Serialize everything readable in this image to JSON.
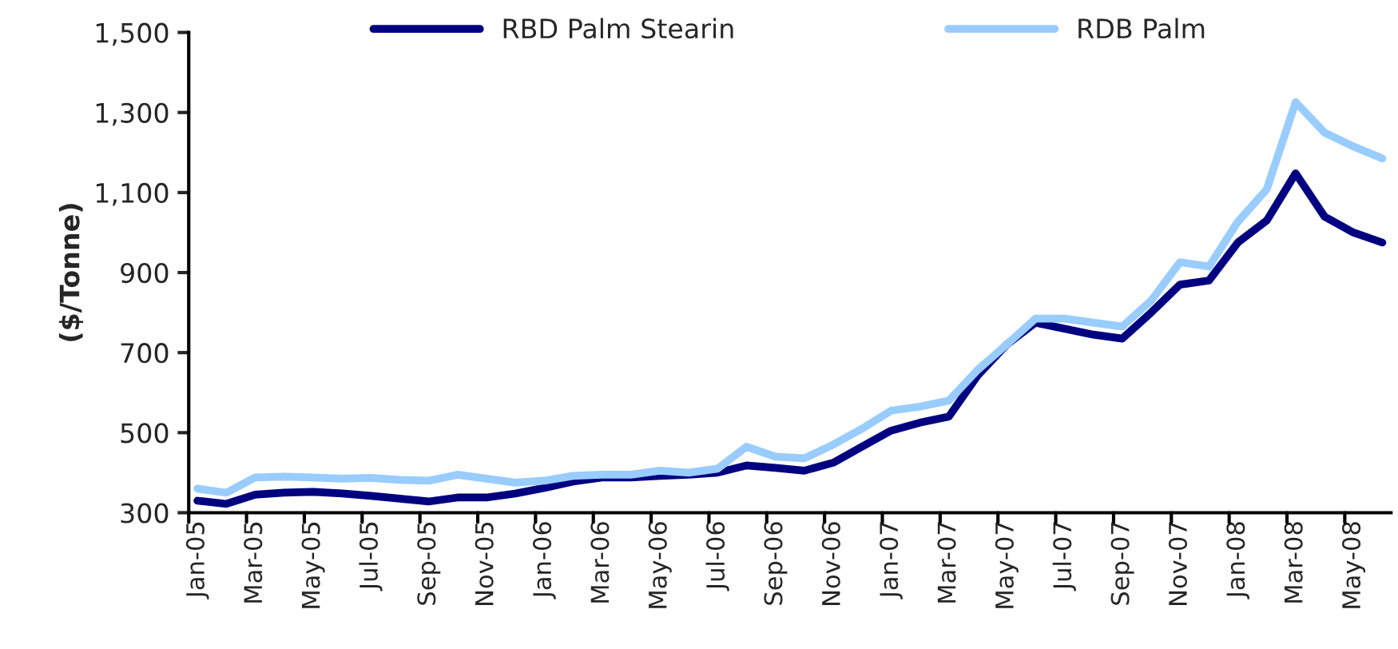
{
  "chart_data": {
    "type": "line",
    "ylabel": "($/Tonne)",
    "categories": [
      "Jan-05",
      null,
      "Mar-05",
      null,
      "May-05",
      null,
      "Jul-05",
      null,
      "Sep-05",
      null,
      "Nov-05",
      null,
      "Jan-06",
      null,
      "Mar-06",
      null,
      "May-06",
      null,
      "Jul-06",
      null,
      "Sep-06",
      null,
      "Nov-06",
      null,
      "Jan-07",
      null,
      "Mar-07",
      null,
      "May-07",
      null,
      "Jul-07",
      null,
      "Sep-07",
      null,
      "Nov-07",
      null,
      "Jan-08",
      null,
      "Mar-08",
      null,
      "May-08",
      null
    ],
    "series": [
      {
        "name": "RBD Palm Stearin",
        "color": "#000080",
        "values": [
          330,
          322,
          345,
          350,
          352,
          348,
          342,
          335,
          328,
          338,
          338,
          348,
          362,
          378,
          388,
          388,
          392,
          395,
          400,
          418,
          412,
          405,
          425,
          465,
          505,
          525,
          540,
          643,
          720,
          775,
          760,
          745,
          735,
          800,
          870,
          880,
          975,
          1030,
          1148,
          1040,
          1000,
          975
        ]
      },
      {
        "name": "RDB Palm",
        "color": "#99ccff",
        "values": [
          360,
          350,
          388,
          390,
          388,
          385,
          387,
          382,
          380,
          395,
          385,
          375,
          380,
          392,
          395,
          395,
          405,
          400,
          410,
          465,
          440,
          436,
          470,
          510,
          555,
          565,
          580,
          657,
          720,
          785,
          785,
          775,
          765,
          830,
          926,
          915,
          1027,
          1108,
          1326,
          1250,
          1215,
          1185
        ]
      }
    ],
    "ylim": [
      300,
      1500
    ],
    "yticks": [
      {
        "value": 300,
        "label": "300"
      },
      {
        "value": 500,
        "label": "500"
      },
      {
        "value": 700,
        "label": "700"
      },
      {
        "value": 900,
        "label": "900"
      },
      {
        "value": 1100,
        "label": "1,100"
      },
      {
        "value": 1300,
        "label": "1,300"
      },
      {
        "value": 1500,
        "label": "1,500"
      }
    ],
    "grid": false,
    "legend": "top",
    "marker": "none",
    "line_style": "solid"
  }
}
